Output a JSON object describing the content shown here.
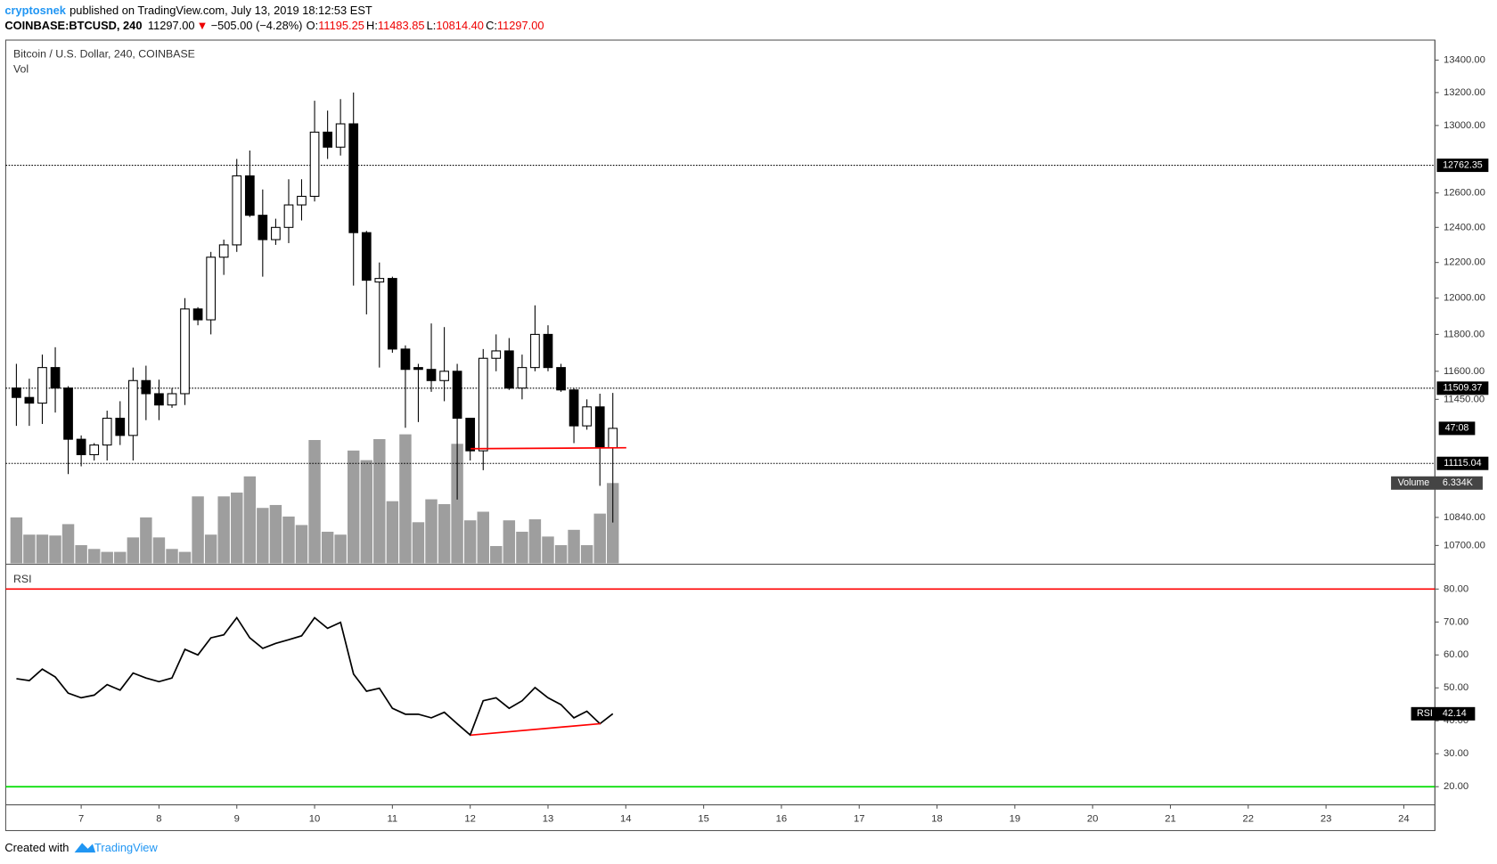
{
  "header": {
    "author": "cryptosnek",
    "published": "published on TradingView.com, July 13, 2019 18:12:53 EST",
    "symbol": "COINBASE:BTCUSD, 240",
    "last": "11297.00",
    "arrow": "▼",
    "change": "−505.00 (−4.28%)",
    "o_label": "O:",
    "o": "11195.25",
    "h_label": "H:",
    "h": "11483.85",
    "l_label": "L:",
    "l": "10814.40",
    "c_label": "C:",
    "c": "11297.00"
  },
  "footer": {
    "created": "Created with",
    "brand": "TradingView"
  },
  "chart_data": {
    "type": "candlestick",
    "title": "Bitcoin / U.S. Dollar, 240, COINBASE",
    "log_scale": true,
    "up_color": "#ffffff",
    "down_color": "#000000",
    "volume_color": "#9e9e9e",
    "ylim": [
      10612,
      13525
    ],
    "yticks": [
      {
        "value": 13400,
        "label": "13400.00"
      },
      {
        "value": 13200,
        "label": "13200.00"
      },
      {
        "value": 13000,
        "label": "13000.00"
      },
      {
        "value": 12600,
        "label": "12600.00"
      },
      {
        "value": 12400,
        "label": "12400.00"
      },
      {
        "value": 12200,
        "label": "12200.00"
      },
      {
        "value": 12000,
        "label": "12000.00"
      },
      {
        "value": 11800,
        "label": "11800.00"
      },
      {
        "value": 11600,
        "label": "11600.00"
      },
      {
        "value": 11450,
        "label": "11450.00"
      },
      {
        "value": 10840,
        "label": "10840.00"
      },
      {
        "value": 10700,
        "label": "10700.00"
      }
    ],
    "xlim": [
      6.03,
      24.4
    ],
    "xticks": [
      7,
      8,
      9,
      10,
      11,
      12,
      13,
      14,
      15,
      16,
      17,
      18,
      19,
      20,
      21,
      22,
      23,
      24
    ],
    "price_lines": [
      12762.35,
      11509.37,
      11115.04
    ],
    "countdown": "47:08",
    "x": [
      6.167,
      6.333,
      6.5,
      6.667,
      6.833,
      7,
      7.167,
      7.333,
      7.5,
      7.667,
      7.833,
      8,
      8.167,
      8.333,
      8.5,
      8.667,
      8.833,
      9,
      9.167,
      9.333,
      9.5,
      9.667,
      9.833,
      10,
      10.167,
      10.333,
      10.5,
      10.667,
      10.833,
      11,
      11.167,
      11.333,
      11.5,
      11.667,
      11.833,
      12,
      12.167,
      12.333,
      12.5,
      12.667,
      12.833,
      13,
      13.167,
      13.333,
      13.5,
      13.667,
      13.833
    ],
    "open": [
      11510,
      11460,
      11430,
      11620,
      11510,
      11240,
      11160,
      11210,
      11350,
      11260,
      11550,
      11480,
      11420,
      11480,
      11940,
      11880,
      12230,
      12300,
      12700,
      12470,
      12330,
      12400,
      12530,
      12580,
      12960,
      12870,
      13010,
      12370,
      12090,
      12110,
      11720,
      11620,
      11610,
      11550,
      11600,
      11350,
      11180,
      11670,
      11710,
      11510,
      11620,
      11800,
      11620,
      11500,
      11310,
      11410,
      11195.25
    ],
    "high": [
      11640,
      11560,
      11690,
      11730,
      11520,
      11260,
      11220,
      11390,
      11440,
      11620,
      11630,
      11555,
      11510,
      12000,
      11950,
      12260,
      12330,
      12800,
      12850,
      12620,
      12450,
      12680,
      12680,
      13150,
      13090,
      13160,
      13200,
      12380,
      12200,
      12120,
      11740,
      11640,
      11860,
      11840,
      11640,
      11350,
      11720,
      11800,
      11780,
      11690,
      11960,
      11850,
      11640,
      11510,
      11450,
      11480,
      11483.85
    ],
    "low": [
      11310,
      11310,
      11320,
      11380,
      11060,
      11100,
      11130,
      11130,
      11210,
      11130,
      11340,
      11340,
      11405,
      11420,
      11850,
      11800,
      12130,
      12260,
      12460,
      12120,
      12300,
      12310,
      12440,
      12550,
      12800,
      12820,
      12070,
      11910,
      11620,
      11700,
      11300,
      11330,
      11490,
      11440,
      10930,
      11130,
      11080,
      11600,
      11500,
      11450,
      11600,
      11600,
      11490,
      11220,
      11290,
      11000,
      10814.4
    ],
    "close": [
      11460,
      11430,
      11620,
      11510,
      11240,
      11160,
      11210,
      11350,
      11260,
      11550,
      11480,
      11420,
      11480,
      11940,
      11880,
      12230,
      12300,
      12700,
      12470,
      12330,
      12400,
      12530,
      12580,
      12960,
      12870,
      13010,
      12370,
      12100,
      12110,
      11720,
      11610,
      11610,
      11550,
      11600,
      11350,
      11180,
      11670,
      11710,
      11510,
      11620,
      11800,
      11620,
      11500,
      11310,
      11410,
      11195,
      11297
    ],
    "volume": {
      "name": "Vol",
      "label": "Volume",
      "ylim": [
        0,
        41300
      ],
      "values": [
        3620,
        2260,
        2260,
        2190,
        3090,
        1430,
        1130,
        900,
        900,
        2040,
        3620,
        2040,
        1130,
        900,
        5280,
        2260,
        5280,
        5580,
        6860,
        4370,
        4600,
        3690,
        3020,
        9730,
        2490,
        2260,
        8900,
        8140,
        9800,
        4900,
        10180,
        3240,
        5050,
        4670,
        9430,
        3390,
        4070,
        1360,
        3390,
        2490,
        3470,
        2110,
        1430,
        2640,
        1430,
        3920,
        6334
      ],
      "last_label": "6.334K"
    },
    "rsi": {
      "name": "RSI",
      "color": "#000000",
      "ylim": [
        14.5,
        87.25
      ],
      "yticks": [
        {
          "value": 80,
          "label": "80.00"
        },
        {
          "value": 70,
          "label": "70.00"
        },
        {
          "value": 60,
          "label": "60.00"
        },
        {
          "value": 50,
          "label": "50.00"
        },
        {
          "value": 40,
          "label": "40.00"
        },
        {
          "value": 30,
          "label": "30.00"
        },
        {
          "value": 20,
          "label": "20.00"
        }
      ],
      "levels": [
        {
          "value": 80,
          "color": "#ff0000"
        },
        {
          "value": 20,
          "color": "#00dd00"
        }
      ],
      "values": [
        52.8,
        52.2,
        55.7,
        53.3,
        48.4,
        47.0,
        47.8,
        51.0,
        49.3,
        54.5,
        53.0,
        51.9,
        53.0,
        61.7,
        60.0,
        65.2,
        66.1,
        71.3,
        65.2,
        62.0,
        63.5,
        64.6,
        65.8,
        71.3,
        68.1,
        69.9,
        54.2,
        49.0,
        49.9,
        43.8,
        42.0,
        42.0,
        40.9,
        42.6,
        39.1,
        35.7,
        46.1,
        47.0,
        43.8,
        46.1,
        50.1,
        47.0,
        44.9,
        40.9,
        42.9,
        39.1,
        42.14
      ]
    }
  }
}
